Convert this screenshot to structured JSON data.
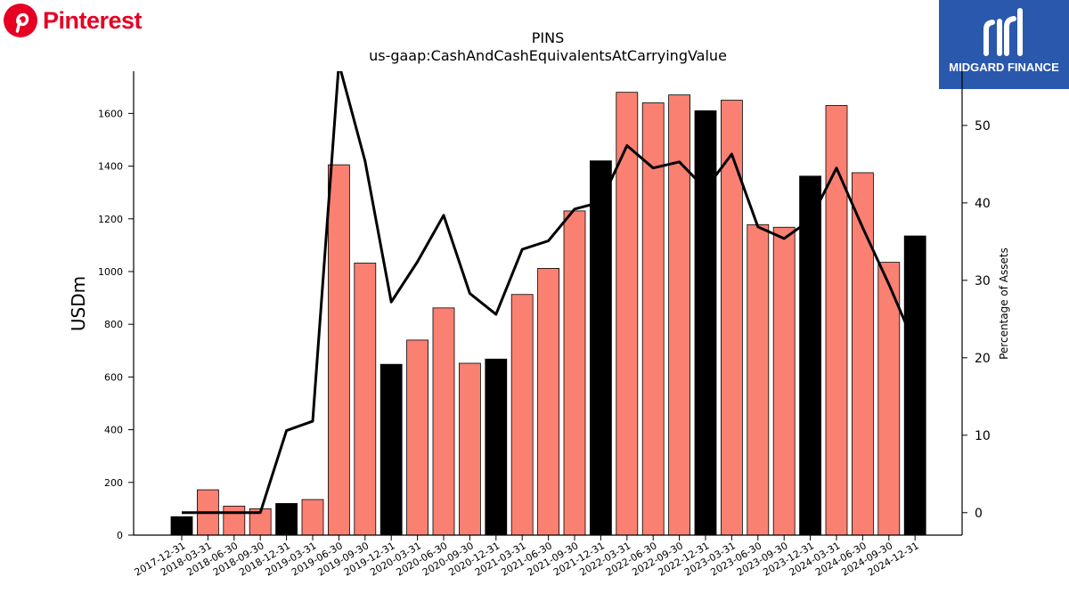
{
  "brand": {
    "name": "Pinterest",
    "icon": "pinterest-p-icon",
    "color": "#e60023"
  },
  "watermark": {
    "name": "MIDGARD FINANCE",
    "icon": "midgard-m-icon",
    "color": "#2a58ad"
  },
  "chart_data": {
    "type": "bar",
    "title": "PINS",
    "subtitle": "us-gaap:CashAndCashEquivalentsAtCarryingValue",
    "ylabel": "USDm",
    "y2label": "Percentage of Assets",
    "ylim": [
      0,
      1760
    ],
    "y2lim": [
      -2.9,
      57
    ],
    "yticks": [
      0,
      200,
      400,
      600,
      800,
      1000,
      1200,
      1400,
      1600
    ],
    "y2ticks": [
      0,
      10,
      20,
      30,
      40,
      50
    ],
    "grid": false,
    "categories": [
      "2017-12-31",
      "2018-03-31",
      "2018-06-30",
      "2018-09-30",
      "2018-12-31",
      "2019-03-31",
      "2019-06-30",
      "2019-09-30",
      "2019-12-31",
      "2020-03-31",
      "2020-06-30",
      "2020-09-30",
      "2020-12-31",
      "2021-03-31",
      "2021-06-30",
      "2021-09-30",
      "2021-12-31",
      "2022-03-31",
      "2022-06-30",
      "2022-09-30",
      "2022-12-31",
      "2023-03-31",
      "2023-06-30",
      "2023-09-30",
      "2023-12-31",
      "2024-03-31",
      "2024-06-30",
      "2024-09-30",
      "2024-12-31"
    ],
    "series": [
      {
        "type": "bar",
        "values": [
          70,
          172,
          110,
          100,
          120,
          135,
          1405,
          1032,
          648,
          740,
          862,
          652,
          668,
          913,
          1012,
          1230,
          1420,
          1680,
          1640,
          1670,
          1610,
          1650,
          1178,
          1168,
          1362,
          1630,
          1375,
          1035,
          1135
        ],
        "year_end_color": "#000000",
        "quarter_color": "#fa8072"
      },
      {
        "type": "line",
        "axis": "right",
        "color": "#000000",
        "values": [
          0,
          0,
          0,
          0,
          10.6,
          11.8,
          58,
          45.4,
          27.2,
          32.4,
          38.4,
          28.3,
          25.6,
          34,
          35.1,
          39.2,
          40.1,
          47.4,
          44.5,
          45.3,
          41.8,
          46.3,
          36.9,
          35.4,
          37.8,
          44.5,
          36.8,
          29.5,
          21.6
        ]
      }
    ]
  }
}
